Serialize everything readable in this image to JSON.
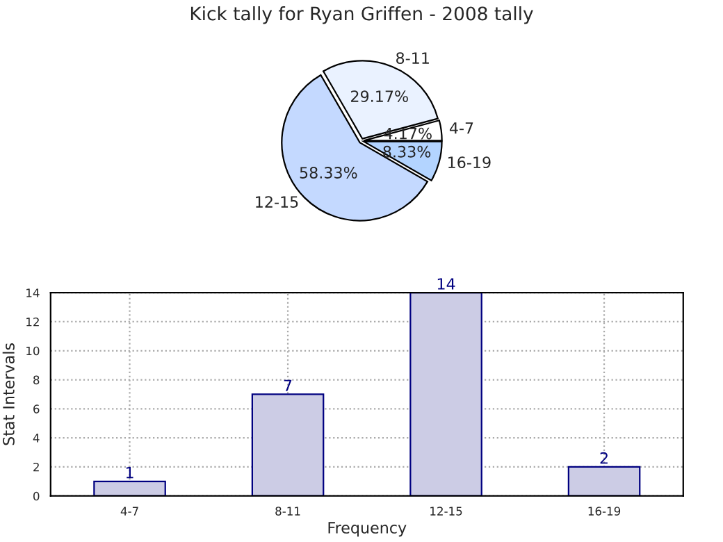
{
  "chart_data": [
    {
      "type": "pie",
      "title": "Kick tally for Ryan Griffen - 2008 tally",
      "categories": [
        "4-7",
        "8-11",
        "12-15",
        "16-19"
      ],
      "values": [
        4.17,
        29.17,
        58.33,
        8.33
      ],
      "value_labels": [
        "4.17%",
        "29.17%",
        "58.33%",
        "8.33%"
      ],
      "colors": [
        "#ffffff",
        "#eaf2ff",
        "#c4d9ff",
        "#b3d4ff"
      ]
    },
    {
      "type": "bar",
      "categories": [
        "4-7",
        "8-11",
        "12-15",
        "16-19"
      ],
      "values": [
        1,
        7,
        14,
        2
      ],
      "color": "#ccccE5",
      "xlabel": "Frequency",
      "ylabel": "Stat Intervals",
      "ylim": [
        0,
        14
      ],
      "yticks": [
        0,
        2,
        4,
        6,
        8,
        10,
        12,
        14
      ],
      "grid": true,
      "data_labels": true
    }
  ]
}
